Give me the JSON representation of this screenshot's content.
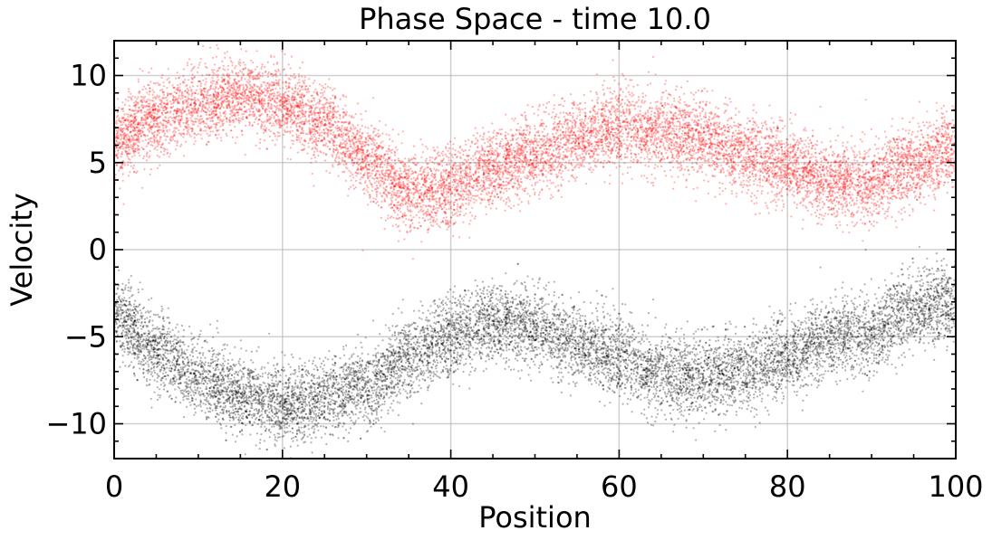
{
  "chart_data": {
    "type": "scatter",
    "title": "Phase Space - time 10.0",
    "xlabel": "Position",
    "ylabel": "Velocity",
    "xlim": [
      0,
      100
    ],
    "ylim": [
      -12,
      12
    ],
    "x_ticks": [
      0,
      20,
      40,
      60,
      80,
      100
    ],
    "x_tick_labels": [
      "0",
      "20",
      "40",
      "60",
      "80",
      "100"
    ],
    "y_ticks": [
      -10,
      -5,
      0,
      5,
      10
    ],
    "y_tick_labels": [
      "−10",
      "−5",
      "0",
      "5",
      "10"
    ],
    "grid": true,
    "legend": "none",
    "series": [
      {
        "color": "#ff0000",
        "alpha": 0.3,
        "points_per_trend_point": 45,
        "spread": 1.1,
        "trend": {
          "x": [
            0,
            5,
            10,
            15,
            20,
            25,
            30,
            35,
            40,
            45,
            50,
            55,
            60,
            65,
            70,
            75,
            80,
            85,
            90,
            95,
            100
          ],
          "y": [
            6.3,
            7.5,
            8.3,
            8.9,
            8.4,
            7.2,
            5.2,
            3.2,
            3.5,
            4.7,
            5.5,
            6.3,
            7.0,
            6.9,
            6.4,
            5.5,
            4.8,
            3.9,
            3.9,
            4.8,
            5.9
          ]
        }
      },
      {
        "color": "#000000",
        "alpha": 0.3,
        "points_per_trend_point": 45,
        "spread": 1.1,
        "trend": {
          "x": [
            0,
            5,
            10,
            15,
            20,
            25,
            30,
            35,
            40,
            45,
            50,
            55,
            60,
            65,
            70,
            75,
            80,
            85,
            90,
            95,
            100
          ],
          "y": [
            -3.8,
            -5.8,
            -7.3,
            -8.3,
            -8.9,
            -8.5,
            -7.8,
            -6.3,
            -5.0,
            -4.2,
            -4.4,
            -5.5,
            -6.2,
            -7.1,
            -7.3,
            -6.9,
            -6.2,
            -5.1,
            -4.7,
            -3.5,
            -3.0
          ]
        }
      }
    ]
  }
}
